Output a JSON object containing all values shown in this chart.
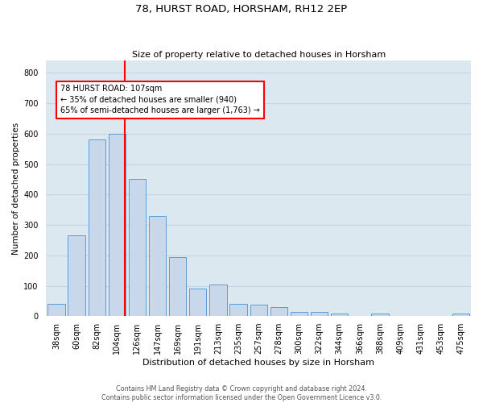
{
  "title": "78, HURST ROAD, HORSHAM, RH12 2EP",
  "subtitle": "Size of property relative to detached houses in Horsham",
  "xlabel": "Distribution of detached houses by size in Horsham",
  "ylabel": "Number of detached properties",
  "categories": [
    "38sqm",
    "60sqm",
    "82sqm",
    "104sqm",
    "126sqm",
    "147sqm",
    "169sqm",
    "191sqm",
    "213sqm",
    "235sqm",
    "257sqm",
    "278sqm",
    "300sqm",
    "322sqm",
    "344sqm",
    "366sqm",
    "388sqm",
    "409sqm",
    "431sqm",
    "453sqm",
    "475sqm"
  ],
  "values": [
    40,
    265,
    580,
    600,
    450,
    330,
    195,
    90,
    103,
    40,
    38,
    30,
    15,
    15,
    10,
    0,
    10,
    0,
    0,
    0,
    8
  ],
  "bar_color": "#c8d8ea",
  "bar_edge_color": "#5b9bd5",
  "vline_color": "red",
  "vline_x": 3.4,
  "annotation_text": "78 HURST ROAD: 107sqm\n← 35% of detached houses are smaller (940)\n65% of semi-detached houses are larger (1,763) →",
  "annotation_box_facecolor": "white",
  "annotation_box_edgecolor": "red",
  "grid_color": "#c8d4e0",
  "background_color": "#dce8f0",
  "ylim": [
    0,
    840
  ],
  "yticks": [
    0,
    100,
    200,
    300,
    400,
    500,
    600,
    700,
    800
  ],
  "title_fontsize": 9.5,
  "subtitle_fontsize": 8,
  "xlabel_fontsize": 8,
  "ylabel_fontsize": 7.5,
  "tick_fontsize": 7,
  "footer_line1": "Contains HM Land Registry data © Crown copyright and database right 2024.",
  "footer_line2": "Contains public sector information licensed under the Open Government Licence v3.0.",
  "footer_fontsize": 5.8
}
